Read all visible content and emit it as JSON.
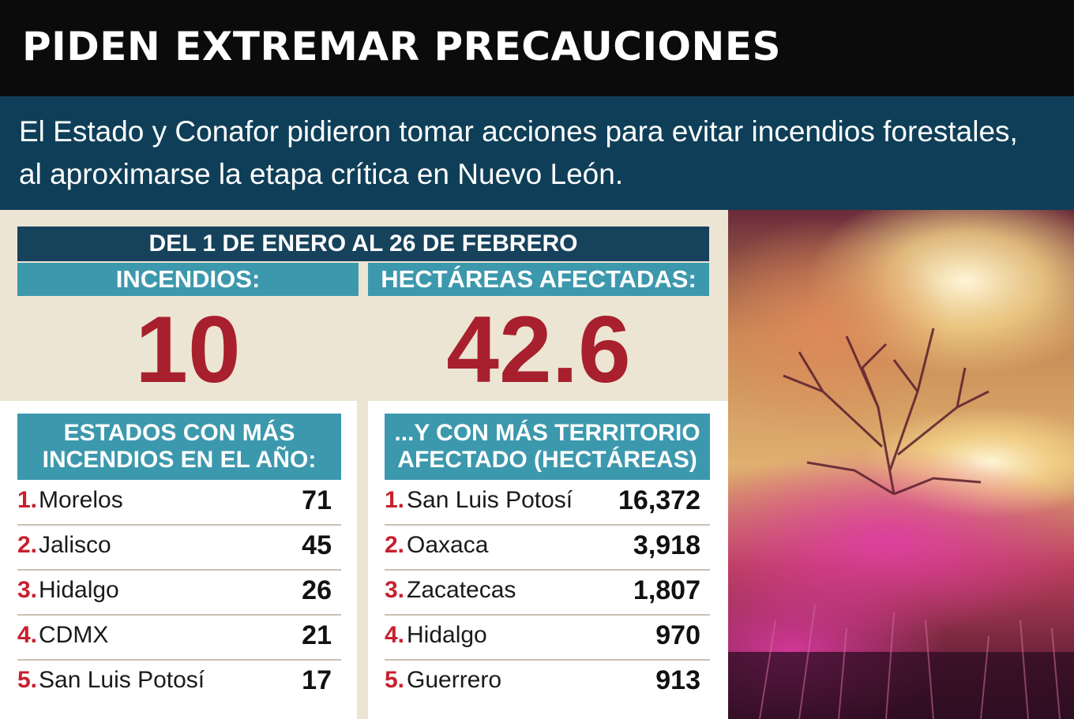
{
  "header": {
    "title": "PIDEN EXTREMAR PRECAUCIONES"
  },
  "subhead": {
    "text": "El Estado y Conafor pidieron tomar acciones para evitar incendios forestales, al aproximarse la etapa crítica en Nuevo León."
  },
  "period": {
    "label": "DEL 1 DE ENERO AL 26 DE FEBRERO"
  },
  "fires": {
    "label": "INCENDIOS:",
    "value": "10"
  },
  "hectares": {
    "label": "HECTÁREAS AFECTADAS:",
    "value": "42.6"
  },
  "states_fires": {
    "heading_line1": "ESTADOS CON MÁS",
    "heading_line2": "INCENDIOS EN EL AÑO:",
    "rows": [
      {
        "rank": "1.",
        "name": "Morelos",
        "value": "71"
      },
      {
        "rank": "2.",
        "name": "Jalisco",
        "value": "45"
      },
      {
        "rank": "3.",
        "name": "Hidalgo",
        "value": "26"
      },
      {
        "rank": "4.",
        "name": "CDMX",
        "value": "21"
      },
      {
        "rank": "5.",
        "name": "San Luis Potosí",
        "value": "17"
      }
    ]
  },
  "states_area": {
    "heading_line1": "...Y CON MÁS TERRITORIO",
    "heading_line2": "AFECTADO (HECTÁREAS)",
    "rows": [
      {
        "rank": "1.",
        "name": "San Luis Potosí",
        "value": "16,372"
      },
      {
        "rank": "2.",
        "name": "Oaxaca",
        "value": "3,918"
      },
      {
        "rank": "3.",
        "name": "Zacatecas",
        "value": "1,807"
      },
      {
        "rank": "4.",
        "name": "Hidalgo",
        "value": "970"
      },
      {
        "rank": "5.",
        "name": "Guerrero",
        "value": "913"
      }
    ]
  },
  "photo": {
    "icon": "wildfire-photo"
  },
  "colors": {
    "header_bg": "#0b0b0b",
    "subhead_bg": "#0f3f58",
    "bar_dark": "#16425c",
    "bar_teal": "#3c98ad",
    "big_number": "#a8202d",
    "rank": "#c8202e",
    "panel_bg": "#ece5d3"
  }
}
